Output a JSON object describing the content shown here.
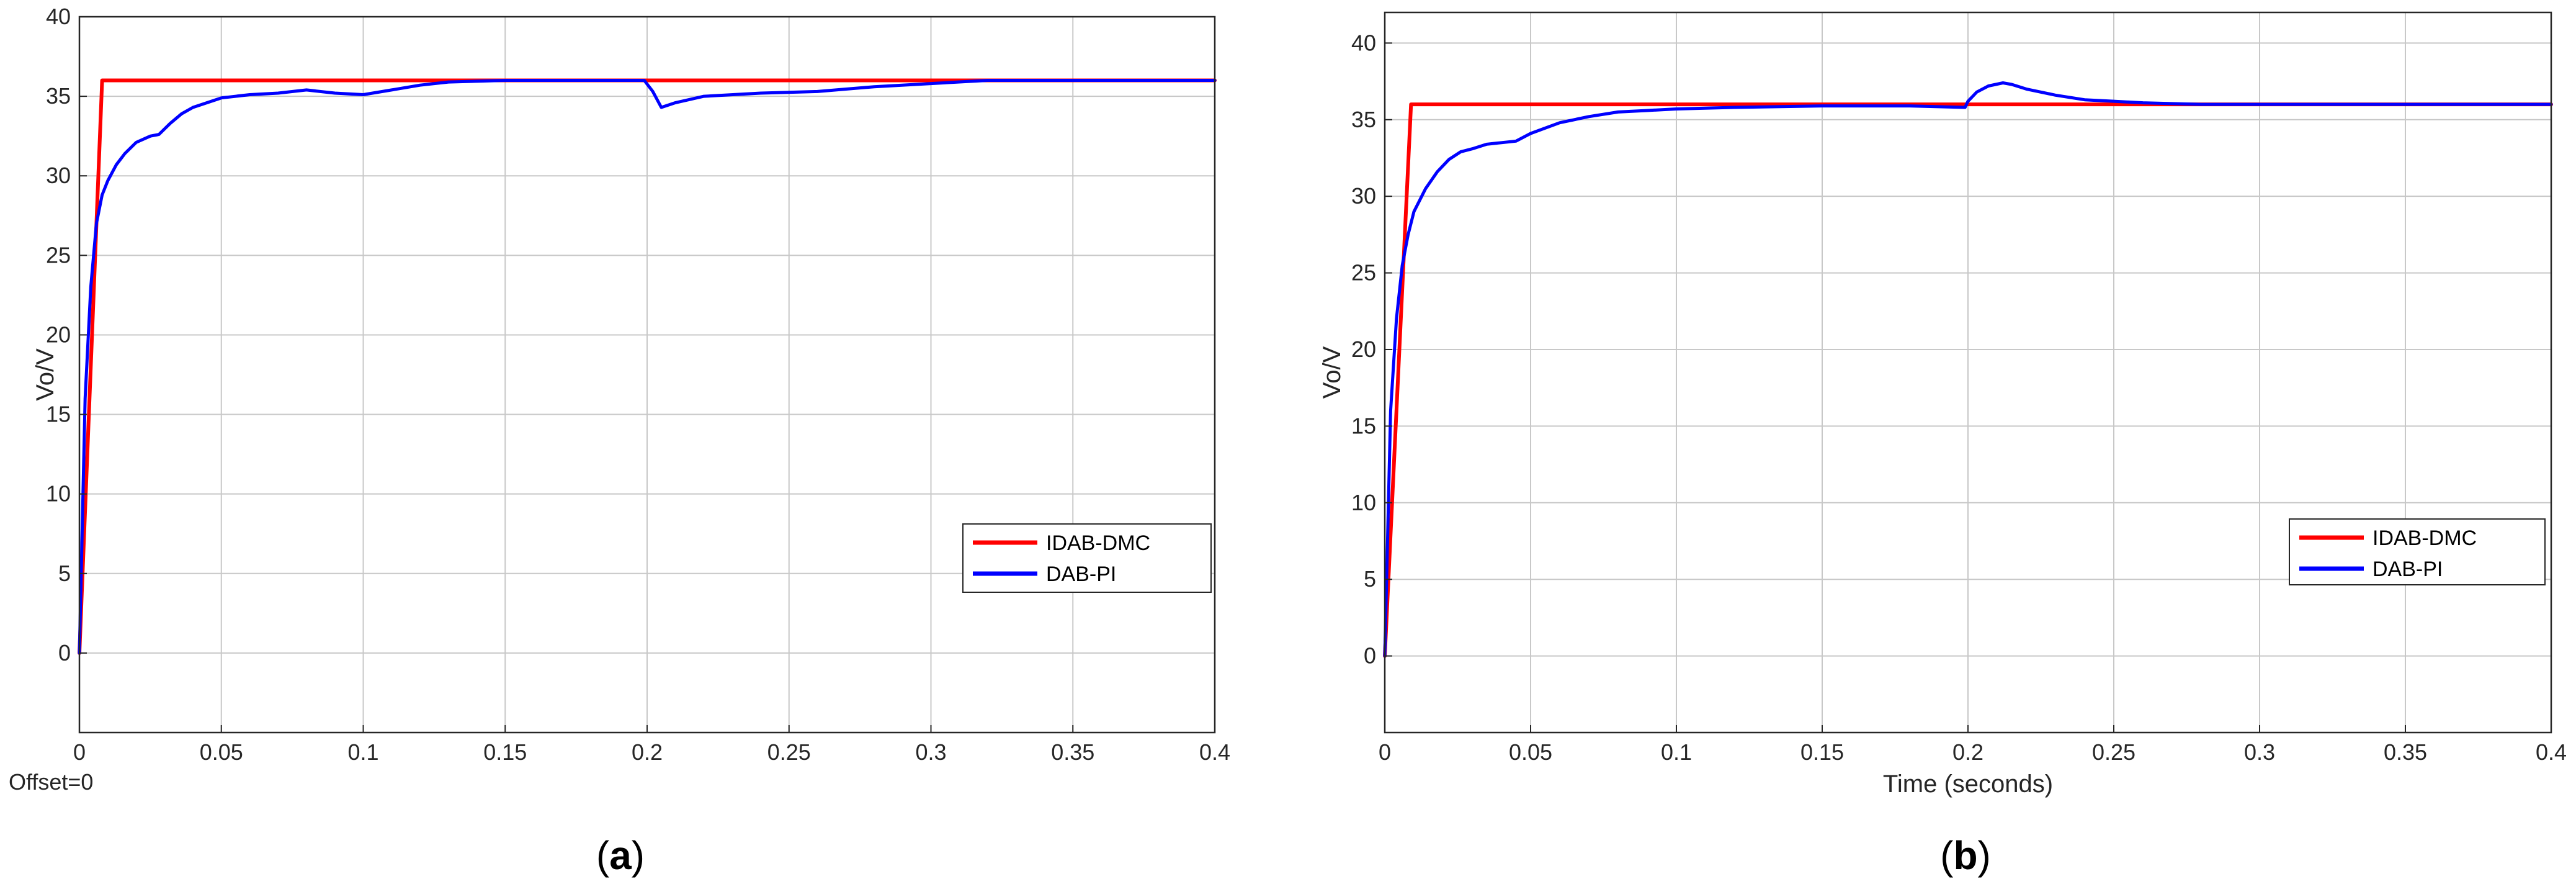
{
  "chart_data": [
    {
      "type": "line",
      "panel_label": "a",
      "xlabel": "",
      "ylabel": "Vo/V",
      "corner_text": "Offset=0",
      "xlim": [
        0,
        0.4
      ],
      "ylim": [
        -5,
        40
      ],
      "xticks": [
        0,
        0.05,
        0.1,
        0.15,
        0.2,
        0.25,
        0.3,
        0.35,
        0.4
      ],
      "xtick_labels": [
        "0",
        "0.05",
        "0.1",
        "0.15",
        "0.2",
        "0.25",
        "0.3",
        "0.35",
        "0.4"
      ],
      "yticks": [
        0,
        5,
        10,
        15,
        20,
        25,
        30,
        35,
        40
      ],
      "ytick_labels": [
        "0",
        "5",
        "10",
        "15",
        "20",
        "25",
        "30",
        "35",
        "40"
      ],
      "grid": true,
      "legend_position": "lower-right",
      "series": [
        {
          "name": "IDAB-DMC",
          "color": "#ff0000",
          "x": [
            0,
            0.008,
            0.4
          ],
          "y": [
            0,
            36,
            36
          ]
        },
        {
          "name": "DAB-PI",
          "color": "#0000ff",
          "x": [
            0,
            0.002,
            0.004,
            0.006,
            0.008,
            0.01,
            0.013,
            0.016,
            0.02,
            0.025,
            0.028,
            0.032,
            0.036,
            0.04,
            0.045,
            0.05,
            0.06,
            0.07,
            0.08,
            0.09,
            0.1,
            0.11,
            0.12,
            0.13,
            0.15,
            0.17,
            0.19,
            0.199,
            0.202,
            0.205,
            0.21,
            0.22,
            0.24,
            0.26,
            0.28,
            0.3,
            0.32,
            0.34,
            0.37,
            0.4
          ],
          "y": [
            0,
            16,
            23,
            27,
            28.8,
            29.7,
            30.7,
            31.4,
            32.1,
            32.5,
            32.6,
            33.3,
            33.9,
            34.3,
            34.6,
            34.9,
            35.1,
            35.2,
            35.4,
            35.2,
            35.1,
            35.4,
            35.7,
            35.9,
            36,
            36,
            36,
            36,
            35.3,
            34.3,
            34.6,
            35,
            35.2,
            35.3,
            35.6,
            35.8,
            36,
            36,
            36,
            36
          ]
        }
      ]
    },
    {
      "type": "line",
      "panel_label": "b",
      "xlabel": "Time (seconds)",
      "ylabel": "Vo/V",
      "xlim": [
        0,
        0.4
      ],
      "ylim": [
        -5,
        42
      ],
      "xticks": [
        0,
        0.05,
        0.1,
        0.15,
        0.2,
        0.25,
        0.3,
        0.35,
        0.4
      ],
      "xtick_labels": [
        "0",
        "0.05",
        "0.1",
        "0.15",
        "0.2",
        "0.25",
        "0.3",
        "0.35",
        "0.4"
      ],
      "yticks": [
        0,
        5,
        10,
        15,
        20,
        25,
        30,
        35,
        40
      ],
      "ytick_labels": [
        "0",
        "5",
        "10",
        "15",
        "20",
        "25",
        "30",
        "35",
        "40"
      ],
      "grid": true,
      "legend_position": "lower-right",
      "series": [
        {
          "name": "IDAB-DMC",
          "color": "#ff0000",
          "x": [
            0,
            0.009,
            0.4
          ],
          "y": [
            0,
            36,
            36
          ]
        },
        {
          "name": "DAB-PI",
          "color": "#0000ff",
          "x": [
            0,
            0.002,
            0.004,
            0.006,
            0.008,
            0.01,
            0.014,
            0.018,
            0.022,
            0.026,
            0.03,
            0.035,
            0.04,
            0.045,
            0.05,
            0.06,
            0.07,
            0.08,
            0.09,
            0.1,
            0.12,
            0.15,
            0.18,
            0.199,
            0.2,
            0.203,
            0.207,
            0.212,
            0.215,
            0.22,
            0.23,
            0.24,
            0.25,
            0.26,
            0.28,
            0.3,
            0.35,
            0.4
          ],
          "y": [
            0,
            16,
            22,
            25.5,
            27.5,
            29,
            30.5,
            31.6,
            32.4,
            32.9,
            33.1,
            33.4,
            33.5,
            33.6,
            34.1,
            34.8,
            35.2,
            35.5,
            35.6,
            35.7,
            35.8,
            35.9,
            35.9,
            35.8,
            36.2,
            36.8,
            37.2,
            37.4,
            37.3,
            37,
            36.6,
            36.3,
            36.2,
            36.1,
            36,
            36,
            36,
            36
          ]
        }
      ]
    }
  ]
}
